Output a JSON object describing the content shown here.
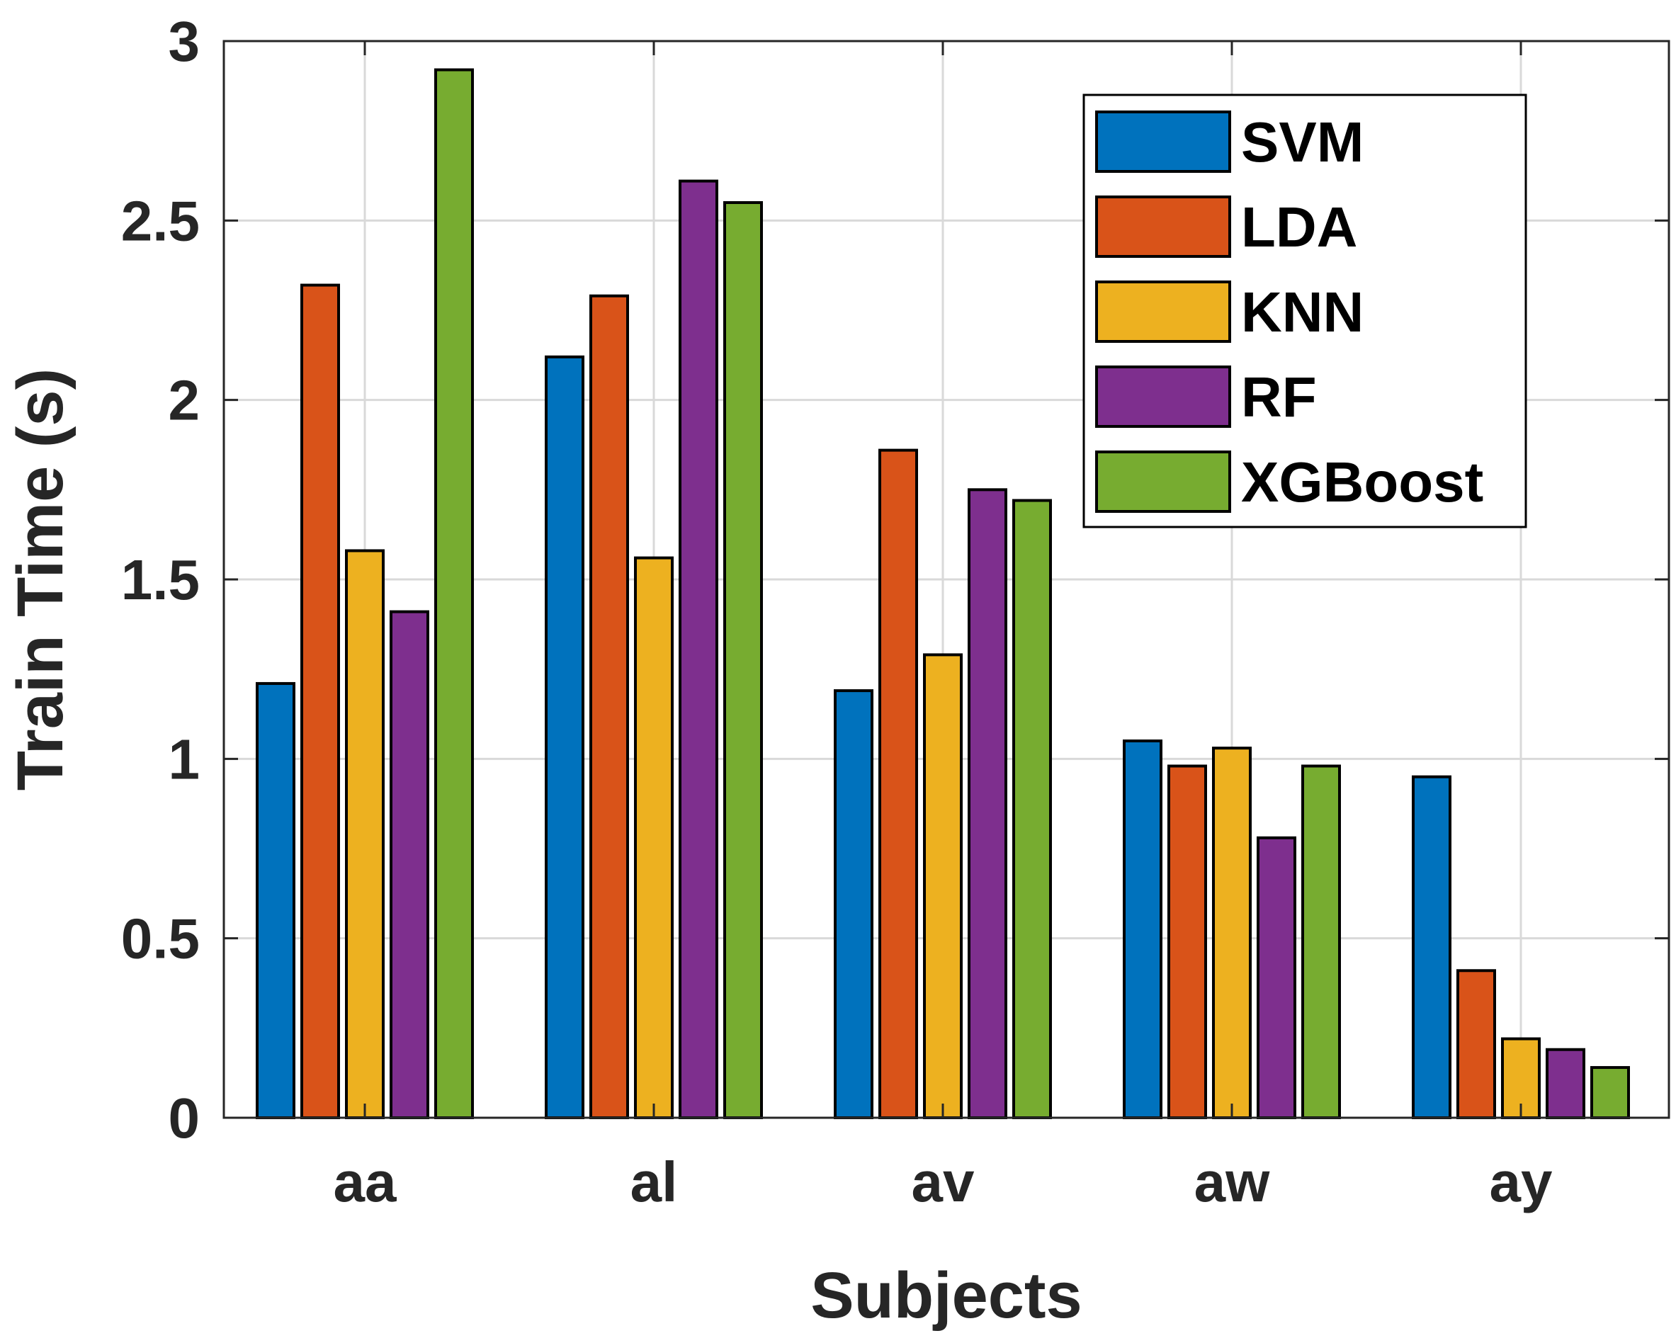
{
  "chart_data": {
    "type": "bar",
    "title": "",
    "xlabel": "Subjects",
    "ylabel": "Train Time (s)",
    "categories": [
      "aa",
      "al",
      "av",
      "aw",
      "ay"
    ],
    "ylim": [
      0,
      3
    ],
    "yticks": [
      "0",
      "0.5",
      "1",
      "1.5",
      "2",
      "2.5",
      "3"
    ],
    "grid": true,
    "legend_position": "top-right",
    "series": [
      {
        "name": "SVM",
        "color": "#0072BD",
        "values": [
          1.21,
          2.12,
          1.19,
          1.05,
          0.95
        ]
      },
      {
        "name": "LDA",
        "color": "#D95319",
        "values": [
          2.32,
          2.29,
          1.86,
          0.98,
          0.41
        ]
      },
      {
        "name": "KNN",
        "color": "#EDB120",
        "values": [
          1.58,
          1.56,
          1.29,
          1.03,
          0.22
        ]
      },
      {
        "name": "RF",
        "color": "#7E2F8E",
        "values": [
          1.41,
          2.61,
          1.75,
          0.78,
          0.19
        ]
      },
      {
        "name": "XGBoost",
        "color": "#77AC30",
        "values": [
          2.92,
          2.55,
          1.72,
          0.98,
          0.14
        ]
      }
    ]
  }
}
